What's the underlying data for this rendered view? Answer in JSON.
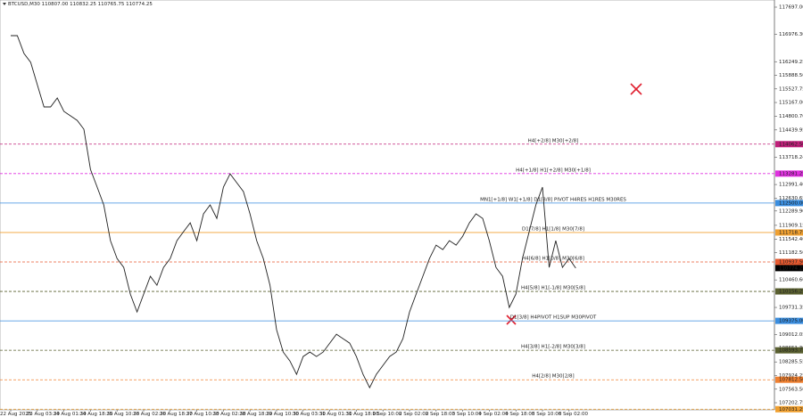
{
  "chart_data": {
    "type": "line",
    "title": "BTCUSD,M30  110807.00 110832.25 110765.75 110774.25",
    "categories": [
      "22 Aug 2025",
      null,
      null,
      null,
      "23 Aug 03:30",
      null,
      null,
      null,
      "24 Aug 01:30",
      null,
      null,
      null,
      "24 Aug 18:30",
      null,
      null,
      null,
      "25 Aug 10:30",
      null,
      null,
      null,
      "26 Aug 02:30",
      null,
      null,
      null,
      "26 Aug 18:30",
      null,
      null,
      null,
      "27 Aug 10:30",
      null,
      null,
      null,
      "28 Aug 02:30",
      null,
      null,
      null,
      "28 Aug 18:30",
      null,
      null,
      null,
      "29 Aug 10:30",
      null,
      null,
      null,
      "30 Aug 03:30",
      null,
      null,
      null,
      "31 Aug 01:30",
      null,
      null,
      null,
      "31 Aug 18:00",
      null,
      null,
      null,
      "1 Sep 10:00",
      null,
      null,
      null,
      "2 Sep 02:00",
      null,
      null,
      null,
      "2 Sep 18:00",
      null,
      null,
      null,
      "3 Sep 10:00",
      null,
      null,
      null,
      "4 Sep 02:00",
      null,
      null,
      null,
      "4 Sep 18:00",
      null,
      null,
      null,
      "5 Sep 10:00",
      null,
      null,
      null,
      "6 Sep 02:00",
      null
    ],
    "series": [
      {
        "name": "BTCUSD,M30",
        "color": "#202020",
        "values": [
          116940,
          116940,
          116468,
          116231,
          115640,
          115049,
          115049,
          115286,
          114931,
          114813,
          114694,
          114458,
          113394,
          112922,
          112449,
          111503,
          111030,
          110794,
          110085,
          109612,
          110085,
          110558,
          110321,
          110794,
          111030,
          111503,
          111740,
          111976,
          111503,
          112213,
          112449,
          112094,
          112922,
          113276,
          113040,
          112804,
          112213,
          111503,
          111030,
          110321,
          109139,
          108548,
          108312,
          107957,
          108430,
          108548,
          108430,
          108548,
          108785,
          109021,
          108903,
          108785,
          108430,
          107957,
          107603,
          107957,
          108193,
          108430,
          108548,
          108903,
          109612,
          110085,
          110558,
          111030,
          111385,
          111267,
          111503,
          111385,
          111621,
          111976,
          112213,
          112094,
          111503,
          110794,
          110558,
          109730,
          110085,
          111030,
          111740,
          112449,
          112922,
          110794,
          111503,
          110794,
          111030,
          110774.25
        ]
      }
    ],
    "ylim": [
      107014,
      117886
    ],
    "yticks": [
      {
        "value": 117697,
        "label": "117697.00"
      },
      {
        "value": 116976.3,
        "label": "116976.30"
      },
      {
        "value": 116249.25,
        "label": "116249.25"
      },
      {
        "value": 115888.5,
        "label": "115888.50"
      },
      {
        "value": 115527.75,
        "label": "115527.75"
      },
      {
        "value": 115167,
        "label": "115167.00"
      },
      {
        "value": 114800.7,
        "label": "114800.70"
      },
      {
        "value": 114439.95,
        "label": "114439.95"
      },
      {
        "value": 113718.24,
        "label": "113718.24"
      },
      {
        "value": 112991.4,
        "label": "112991.40"
      },
      {
        "value": 112630.65,
        "label": "112630.65"
      },
      {
        "value": 112289.9,
        "label": "112289.90"
      },
      {
        "value": 111909.15,
        "label": "111909.15"
      },
      {
        "value": 111542.4,
        "label": "111542.40"
      },
      {
        "value": 111182.5,
        "label": "111182.50"
      },
      {
        "value": 110460.6,
        "label": "110460.60"
      },
      {
        "value": 109731.35,
        "label": "109731.35"
      },
      {
        "value": 109012.05,
        "label": "109012.05"
      },
      {
        "value": 108651.3,
        "label": "108651.30"
      },
      {
        "value": 108285.55,
        "label": "108285.55"
      },
      {
        "value": 107924.25,
        "label": "107924.25"
      },
      {
        "value": 107563.5,
        "label": "107563.50"
      },
      {
        "value": 107202.75,
        "label": "107202.75"
      }
    ],
    "levels": [
      {
        "name": "H4[+2/8] M30[+2/8]",
        "value": 114062.5,
        "value_label": "114062.50",
        "color": "#c0207a",
        "dash": true
      },
      {
        "name": "H4[+1/8] H1[+2/8] M30[+1/8]",
        "value": 113281.25,
        "value_label": "113281.25",
        "color": "#e030e0",
        "dash": true
      },
      {
        "name": "MN1[+1/8] W1[+1/8] D1[8/8] PIVOT H4RES H1RES M30RES",
        "value": 112500,
        "value_label": "112500.00",
        "color": "#3a8ee0",
        "dash": false
      },
      {
        "name": "D1[7/8] H1[1/8] M30[7/8]",
        "value": 111718.75,
        "value_label": "111718.75",
        "color": "#f0a030",
        "dash": false
      },
      {
        "name": "H4[6/8] H1[0/8] M30[6/8]",
        "value": 110937.5,
        "value_label": "110937.50",
        "color": "#e85a30",
        "dash": true
      },
      {
        "name": "H4[5/8] H1[-1/8] M30[5/8]",
        "value": 110156.25,
        "value_label": "110156.25",
        "color": "#5a6030",
        "dash": true
      },
      {
        "name": "D1[3/8] H4PIVOT H1SUP M30PIVOT",
        "value": 109375,
        "value_label": "109375.00",
        "color": "#3a8ee0",
        "dash": false
      },
      {
        "name": "H4[3/8] H1[-2/8] M30[3/8]",
        "value": 108593.75,
        "value_label": "108593.75",
        "color": "#5a6030",
        "dash": true
      },
      {
        "name": "H4[2/8] M30[2/8]",
        "value": 107812.5,
        "value_label": "107812.50",
        "color": "#f08030",
        "dash": true
      },
      {
        "value": 107031.25,
        "value_label": "107031.25",
        "color": "#f0a030",
        "dash": true
      }
    ]
  }
}
